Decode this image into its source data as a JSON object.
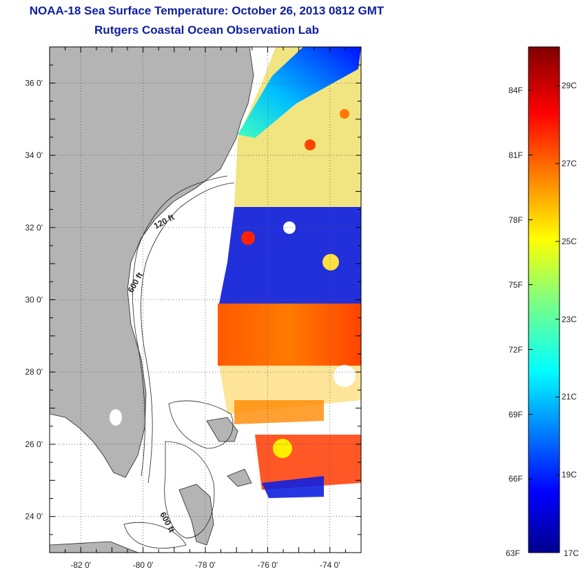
{
  "title": "NOAA-18 Sea Surface Temperature:  October 26, 2013 0812 GMT",
  "subtitle": "Rutgers Coastal Ocean Observation Lab",
  "map": {
    "lon_range": [
      -83,
      -73
    ],
    "lat_range": [
      23,
      37
    ],
    "lat_ticks": [
      {
        "value": 36,
        "label": "36 0'"
      },
      {
        "value": 34,
        "label": "34 0'"
      },
      {
        "value": 32,
        "label": "32 0'"
      },
      {
        "value": 30,
        "label": "30 0'"
      },
      {
        "value": 28,
        "label": "28 0'"
      },
      {
        "value": 26,
        "label": "26 0'"
      },
      {
        "value": 24,
        "label": "24 0'"
      }
    ],
    "lon_ticks": [
      {
        "value": -82,
        "label": "-82 0'"
      },
      {
        "value": -80,
        "label": "-80 0'"
      },
      {
        "value": -78,
        "label": "-78 0'"
      },
      {
        "value": -76,
        "label": "-76 0'"
      },
      {
        "value": -74,
        "label": "-74 0'"
      }
    ],
    "contour_labels": [
      "120 ft",
      "600 ft",
      "600 ft"
    ],
    "colors": {
      "land": "#b4b4b4",
      "ocean_nodata": "#ffffff",
      "grid": "#555555"
    }
  },
  "colorbar": {
    "celsius_range": [
      17,
      30
    ],
    "fahrenheit": [
      "84F",
      "81F",
      "78F",
      "75F",
      "72F",
      "69F",
      "66F",
      "63F"
    ],
    "celsius": [
      "29C",
      "27C",
      "25C",
      "23C",
      "21C",
      "19C",
      "17C"
    ]
  }
}
